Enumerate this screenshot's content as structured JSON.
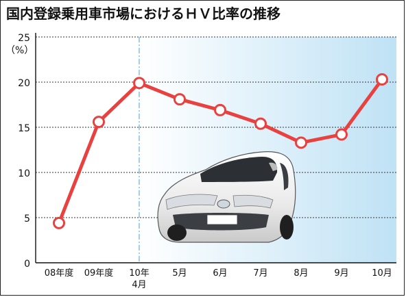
{
  "title": "国内登録乗用車市場におけるＨＶ比率の推移",
  "chart_data": {
    "type": "line",
    "title": "国内登録乗用車市場におけるＨＶ比率の推移",
    "xlabel": "",
    "ylabel": "（%）",
    "categories": [
      "08年度",
      "09年度",
      "10年\n4月",
      "5月",
      "6月",
      "7月",
      "8月",
      "9月",
      "10月"
    ],
    "series": [
      {
        "values": [
          4.4,
          15.6,
          19.9,
          18.1,
          16.9,
          15.4,
          13.3,
          14.2,
          20.3
        ]
      }
    ],
    "yticks": [
      0,
      5,
      10,
      15,
      20,
      25
    ],
    "ylim": [
      0,
      25
    ],
    "grid": true,
    "line_color": "#e8413f",
    "marker_fill": "#ffffff",
    "shade_start_category": "10年\n4月",
    "shade_color_light": "#ffffff",
    "shade_color_dark": "#bfe2f5",
    "divider_color": "#3aa6d8",
    "car_color": "#f2f2f2"
  }
}
